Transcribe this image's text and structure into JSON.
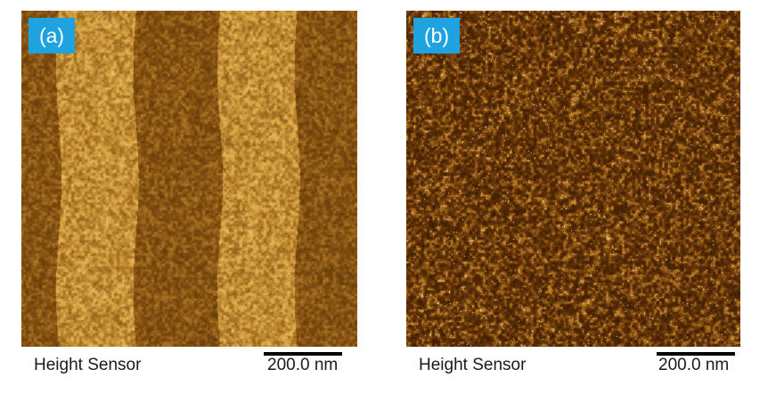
{
  "panels": [
    {
      "label": "(a)",
      "sensor": "Height Sensor",
      "scale": "200.0 nm",
      "texture": "striped-domains",
      "colors": {
        "dark": "#3a1d04",
        "mid": "#8a5512",
        "light": "#d9a544",
        "highlight": "#f2d680"
      }
    },
    {
      "label": "(b)",
      "sensor": "Height Sensor",
      "scale": "200.0 nm",
      "texture": "fine-grain",
      "colors": {
        "dark": "#2a1202",
        "mid": "#6e3a09",
        "light": "#c98a2c",
        "highlight": "#fff2b8"
      }
    }
  ],
  "tag_color": "#1fa3e0"
}
